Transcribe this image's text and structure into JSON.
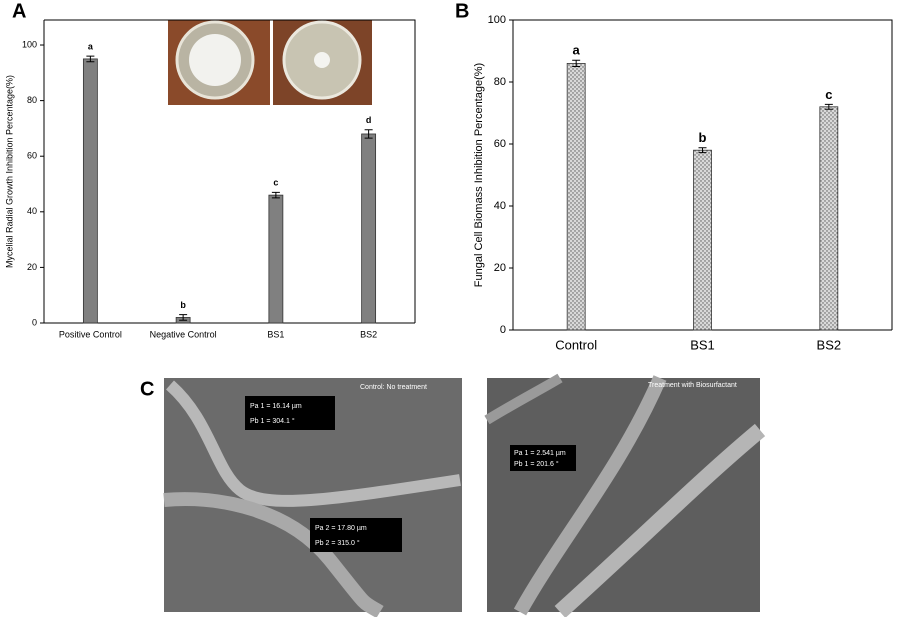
{
  "chart_data": [
    {
      "type": "bar",
      "panel": "A",
      "y_label": "Mycelial Radial Growth Inhibition Percentage(%)",
      "categories": [
        "Positive Control",
        "Negative Control",
        "BS1",
        "BS2"
      ],
      "values": [
        95,
        2,
        46,
        68
      ],
      "errors": [
        1,
        1,
        1,
        1.5
      ],
      "annotations": [
        "a",
        "b",
        "c",
        "d"
      ],
      "color": "#808080",
      "ylim": [
        0,
        109
      ],
      "yticks": [
        0,
        20,
        40,
        60,
        80,
        100
      ]
    },
    {
      "type": "bar",
      "panel": "B",
      "y_label": "Fungal Cell Biomass Inhibition Percentage(%)",
      "categories": [
        "Control",
        "BS1",
        "BS2"
      ],
      "values": [
        86,
        58,
        72
      ],
      "errors": [
        1,
        0.8,
        0.8
      ],
      "annotations": [
        "a",
        "b",
        "c"
      ],
      "color": "#d9d9d9",
      "pattern": "dots",
      "ylim": [
        0,
        100
      ],
      "yticks": [
        0,
        20,
        40,
        60,
        80,
        100
      ]
    }
  ],
  "figure_c": {
    "panel": "C",
    "images": [
      {
        "caption": "Control: No treatment",
        "measurements": [
          "Pa 1 = 16.14 µm",
          "Pb 1 = 304.1 °",
          "Pa 2 = 17.80 µm",
          "Pb 2 = 315.0 °"
        ]
      },
      {
        "caption": "Treatment with Biosurfactant",
        "measurements": [
          "Pa 1 = 2.541 µm",
          "Pb 1 = 201.6 °"
        ]
      }
    ]
  }
}
